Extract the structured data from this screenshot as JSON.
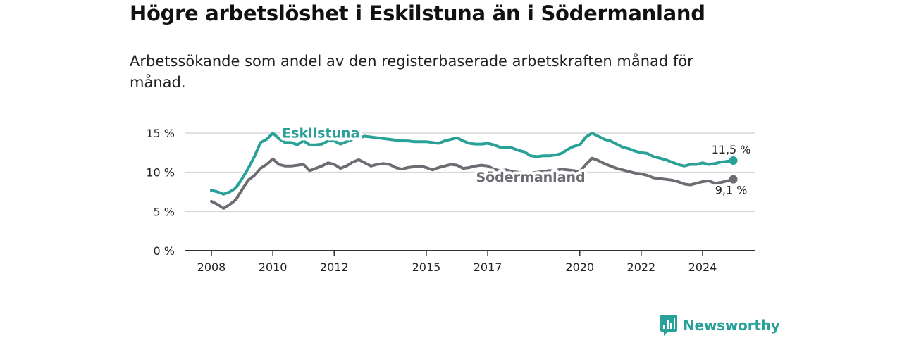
{
  "title": "Högre arbetslöshet i Eskilstuna än i Södermanland",
  "subtitle": "Arbetssökande som andel av den registerbaserade arbetskraften månad för månad.",
  "brand": {
    "name": "Newsworthy",
    "icon": "newsworthy-bar-chart-icon",
    "color": "#2aa198"
  },
  "colors": {
    "eskilstuna": "#2aa198",
    "sodermanland": "#6e6b73",
    "grid": "#d9d9d9",
    "axis": "#333333"
  },
  "chart_data": {
    "type": "line",
    "title": "Högre arbetslöshet i Eskilstuna än i Södermanland",
    "subtitle": "Arbetssökande som andel av den registerbaserade arbetskraften månad för månad.",
    "xlabel": "",
    "ylabel": "",
    "xlim": [
      2008.0,
      2025.5
    ],
    "ylim": [
      0,
      15
    ],
    "yticks": [
      0,
      5,
      10,
      15
    ],
    "ytick_labels": [
      "0 %",
      "5 %",
      "10 %",
      "15 %"
    ],
    "xticks": [
      2008,
      2010,
      2012,
      2015,
      2017,
      2020,
      2022,
      2024
    ],
    "xtick_labels": [
      "2008",
      "2010",
      "2012",
      "2015",
      "2017",
      "2020",
      "2022",
      "2024"
    ],
    "grid": true,
    "legend": "inline labels",
    "series": [
      {
        "name": "Eskilstuna",
        "color": "#2aa198",
        "end_label": "11,5 %",
        "x": [
          2008.0,
          2008.2,
          2008.4,
          2008.6,
          2008.8,
          2009.0,
          2009.2,
          2009.4,
          2009.6,
          2009.8,
          2010.0,
          2010.2,
          2010.4,
          2010.6,
          2010.8,
          2011.0,
          2011.2,
          2011.4,
          2011.6,
          2011.8,
          2012.0,
          2012.2,
          2012.4,
          2012.6,
          2012.8,
          2013.0,
          2013.2,
          2013.4,
          2013.6,
          2013.8,
          2014.0,
          2014.2,
          2014.4,
          2014.6,
          2014.8,
          2015.0,
          2015.2,
          2015.4,
          2015.6,
          2015.8,
          2016.0,
          2016.2,
          2016.4,
          2016.6,
          2016.8,
          2017.0,
          2017.2,
          2017.4,
          2017.6,
          2017.8,
          2018.0,
          2018.2,
          2018.4,
          2018.6,
          2018.8,
          2019.0,
          2019.2,
          2019.4,
          2019.6,
          2019.8,
          2020.0,
          2020.2,
          2020.4,
          2020.6,
          2020.8,
          2021.0,
          2021.2,
          2021.4,
          2021.6,
          2021.8,
          2022.0,
          2022.2,
          2022.4,
          2022.6,
          2022.8,
          2023.0,
          2023.2,
          2023.4,
          2023.6,
          2023.8,
          2024.0,
          2024.2,
          2024.4,
          2024.6,
          2024.8,
          2025.0
        ],
        "values": [
          7.7,
          7.5,
          7.2,
          7.5,
          8.0,
          9.2,
          10.5,
          12.0,
          13.8,
          14.2,
          15.0,
          14.3,
          13.8,
          13.8,
          13.5,
          14.0,
          13.5,
          13.5,
          13.6,
          14.0,
          14.0,
          13.6,
          13.9,
          14.2,
          14.4,
          14.6,
          14.5,
          14.4,
          14.3,
          14.2,
          14.1,
          14.0,
          14.0,
          13.9,
          13.9,
          13.9,
          13.8,
          13.7,
          14.0,
          14.2,
          14.4,
          14.0,
          13.7,
          13.6,
          13.6,
          13.7,
          13.5,
          13.2,
          13.2,
          13.1,
          12.8,
          12.6,
          12.1,
          12.0,
          12.1,
          12.1,
          12.2,
          12.4,
          12.9,
          13.3,
          13.5,
          14.5,
          15.0,
          14.6,
          14.2,
          14.0,
          13.6,
          13.2,
          13.0,
          12.7,
          12.5,
          12.4,
          12.0,
          11.8,
          11.6,
          11.3,
          11.0,
          10.8,
          11.0,
          11.0,
          11.2,
          11.0,
          11.1,
          11.3,
          11.4,
          11.5
        ]
      },
      {
        "name": "Södermanland",
        "color": "#6e6b73",
        "end_label": "9,1 %",
        "x": [
          2008.0,
          2008.2,
          2008.4,
          2008.6,
          2008.8,
          2009.0,
          2009.2,
          2009.4,
          2009.6,
          2009.8,
          2010.0,
          2010.2,
          2010.4,
          2010.6,
          2010.8,
          2011.0,
          2011.2,
          2011.4,
          2011.6,
          2011.8,
          2012.0,
          2012.2,
          2012.4,
          2012.6,
          2012.8,
          2013.0,
          2013.2,
          2013.4,
          2013.6,
          2013.8,
          2014.0,
          2014.2,
          2014.4,
          2014.6,
          2014.8,
          2015.0,
          2015.2,
          2015.4,
          2015.6,
          2015.8,
          2016.0,
          2016.2,
          2016.4,
          2016.6,
          2016.8,
          2017.0,
          2017.2,
          2017.4,
          2017.6,
          2017.8,
          2018.0,
          2018.2,
          2018.4,
          2018.6,
          2018.8,
          2019.0,
          2019.2,
          2019.4,
          2019.6,
          2019.8,
          2020.0,
          2020.2,
          2020.4,
          2020.6,
          2020.8,
          2021.0,
          2021.2,
          2021.4,
          2021.6,
          2021.8,
          2022.0,
          2022.2,
          2022.4,
          2022.6,
          2022.8,
          2023.0,
          2023.2,
          2023.4,
          2023.6,
          2023.8,
          2024.0,
          2024.2,
          2024.4,
          2024.6,
          2024.8,
          2025.0
        ],
        "values": [
          6.3,
          5.9,
          5.4,
          5.9,
          6.5,
          7.8,
          9.0,
          9.6,
          10.5,
          11.0,
          11.7,
          11.0,
          10.8,
          10.8,
          10.9,
          11.0,
          10.2,
          10.5,
          10.8,
          11.2,
          11.0,
          10.5,
          10.8,
          11.3,
          11.6,
          11.2,
          10.8,
          11.0,
          11.1,
          11.0,
          10.6,
          10.4,
          10.6,
          10.7,
          10.8,
          10.6,
          10.3,
          10.6,
          10.8,
          11.0,
          10.9,
          10.5,
          10.6,
          10.8,
          10.9,
          10.8,
          10.4,
          10.2,
          10.3,
          10.1,
          10.0,
          9.9,
          9.9,
          10.0,
          10.1,
          10.2,
          10.2,
          10.4,
          10.3,
          10.2,
          10.1,
          11.0,
          11.8,
          11.5,
          11.1,
          10.8,
          10.5,
          10.3,
          10.1,
          9.9,
          9.8,
          9.6,
          9.3,
          9.2,
          9.1,
          9.0,
          8.8,
          8.5,
          8.4,
          8.6,
          8.8,
          8.9,
          8.6,
          8.7,
          8.9,
          9.1
        ]
      }
    ]
  }
}
